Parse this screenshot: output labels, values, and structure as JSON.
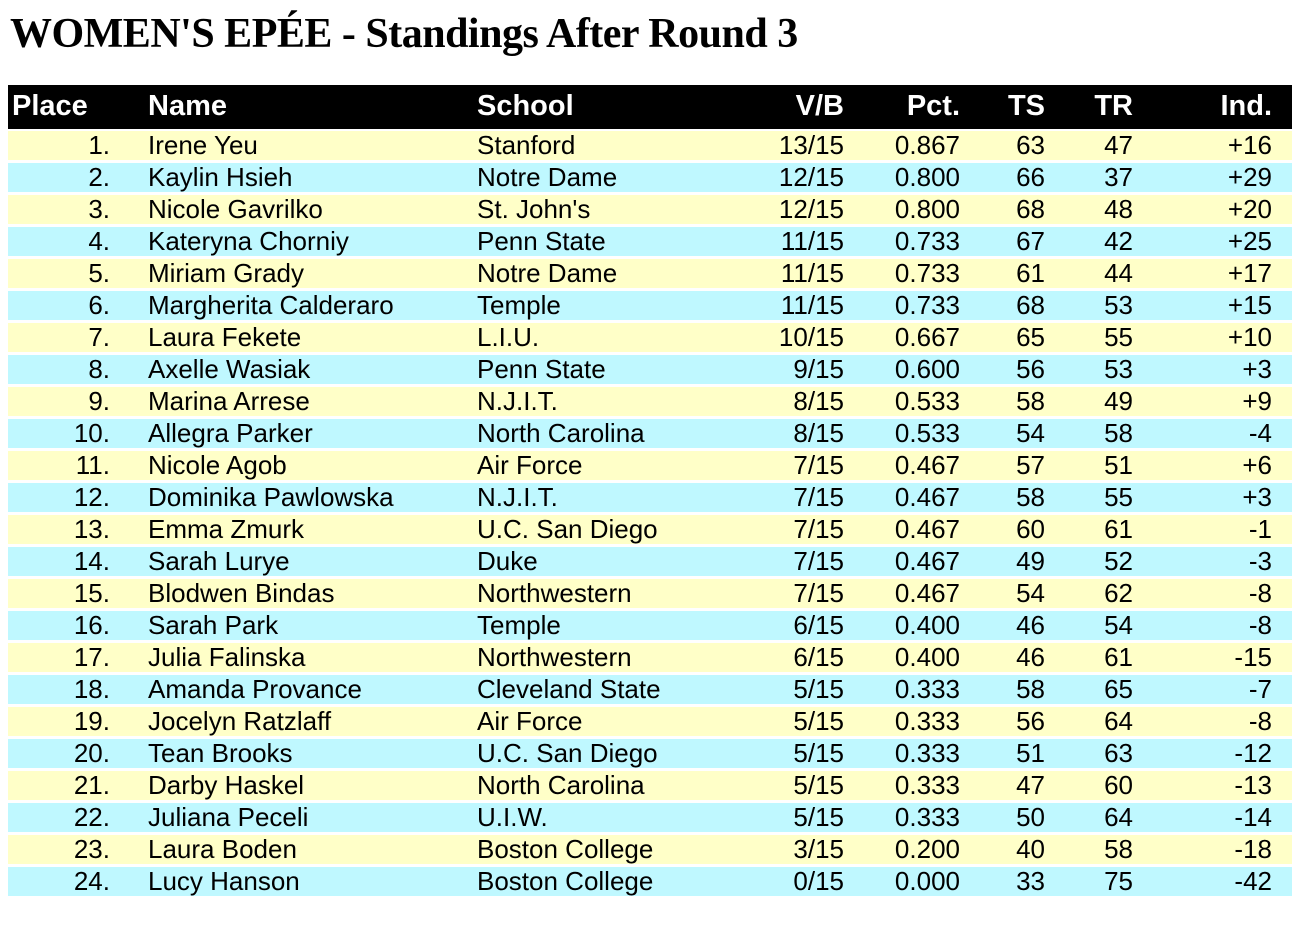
{
  "title": "WOMEN'S EPÉE - Standings After Round 3",
  "colors": {
    "header_bg": "#000000",
    "header_text": "#FFFFFF",
    "row_yellow": "#FFFFC8",
    "row_cyan": "#BFF8FF"
  },
  "table": {
    "columns": [
      {
        "key": "place",
        "label": "Place"
      },
      {
        "key": "name",
        "label": "Name"
      },
      {
        "key": "school",
        "label": "School"
      },
      {
        "key": "vb",
        "label": "V/B"
      },
      {
        "key": "pct",
        "label": "Pct."
      },
      {
        "key": "ts",
        "label": "TS"
      },
      {
        "key": "tr",
        "label": "TR"
      },
      {
        "key": "ind",
        "label": "Ind."
      }
    ],
    "rows": [
      {
        "place": "1.",
        "name": "Irene Yeu",
        "school": "Stanford",
        "vb": "13/15",
        "pct": "0.867",
        "ts": "63",
        "tr": "47",
        "ind": "+16"
      },
      {
        "place": "2.",
        "name": "Kaylin Hsieh",
        "school": "Notre Dame",
        "vb": "12/15",
        "pct": "0.800",
        "ts": "66",
        "tr": "37",
        "ind": "+29"
      },
      {
        "place": "3.",
        "name": "Nicole Gavrilko",
        "school": "St. John's",
        "vb": "12/15",
        "pct": "0.800",
        "ts": "68",
        "tr": "48",
        "ind": "+20"
      },
      {
        "place": "4.",
        "name": "Kateryna Chorniy",
        "school": "Penn State",
        "vb": "11/15",
        "pct": "0.733",
        "ts": "67",
        "tr": "42",
        "ind": "+25"
      },
      {
        "place": "5.",
        "name": "Miriam Grady",
        "school": "Notre Dame",
        "vb": "11/15",
        "pct": "0.733",
        "ts": "61",
        "tr": "44",
        "ind": "+17"
      },
      {
        "place": "6.",
        "name": "Margherita Calderaro",
        "school": "Temple",
        "vb": "11/15",
        "pct": "0.733",
        "ts": "68",
        "tr": "53",
        "ind": "+15"
      },
      {
        "place": "7.",
        "name": "Laura Fekete",
        "school": "L.I.U.",
        "vb": "10/15",
        "pct": "0.667",
        "ts": "65",
        "tr": "55",
        "ind": "+10"
      },
      {
        "place": "8.",
        "name": "Axelle Wasiak",
        "school": "Penn State",
        "vb": "9/15",
        "pct": "0.600",
        "ts": "56",
        "tr": "53",
        "ind": "+3"
      },
      {
        "place": "9.",
        "name": "Marina Arrese",
        "school": "N.J.I.T.",
        "vb": "8/15",
        "pct": "0.533",
        "ts": "58",
        "tr": "49",
        "ind": "+9"
      },
      {
        "place": "10.",
        "name": "Allegra Parker",
        "school": "North Carolina",
        "vb": "8/15",
        "pct": "0.533",
        "ts": "54",
        "tr": "58",
        "ind": "-4"
      },
      {
        "place": "11.",
        "name": "Nicole Agob",
        "school": "Air Force",
        "vb": "7/15",
        "pct": "0.467",
        "ts": "57",
        "tr": "51",
        "ind": "+6"
      },
      {
        "place": "12.",
        "name": "Dominika Pawlowska",
        "school": "N.J.I.T.",
        "vb": "7/15",
        "pct": "0.467",
        "ts": "58",
        "tr": "55",
        "ind": "+3"
      },
      {
        "place": "13.",
        "name": "Emma Zmurk",
        "school": "U.C. San Diego",
        "vb": "7/15",
        "pct": "0.467",
        "ts": "60",
        "tr": "61",
        "ind": "-1"
      },
      {
        "place": "14.",
        "name": "Sarah Lurye",
        "school": "Duke",
        "vb": "7/15",
        "pct": "0.467",
        "ts": "49",
        "tr": "52",
        "ind": "-3"
      },
      {
        "place": "15.",
        "name": "Blodwen Bindas",
        "school": "Northwestern",
        "vb": "7/15",
        "pct": "0.467",
        "ts": "54",
        "tr": "62",
        "ind": "-8"
      },
      {
        "place": "16.",
        "name": "Sarah Park",
        "school": "Temple",
        "vb": "6/15",
        "pct": "0.400",
        "ts": "46",
        "tr": "54",
        "ind": "-8"
      },
      {
        "place": "17.",
        "name": "Julia Falinska",
        "school": "Northwestern",
        "vb": "6/15",
        "pct": "0.400",
        "ts": "46",
        "tr": "61",
        "ind": "-15"
      },
      {
        "place": "18.",
        "name": "Amanda Provance",
        "school": "Cleveland State",
        "vb": "5/15",
        "pct": "0.333",
        "ts": "58",
        "tr": "65",
        "ind": "-7"
      },
      {
        "place": "19.",
        "name": "Jocelyn Ratzlaff",
        "school": "Air Force",
        "vb": "5/15",
        "pct": "0.333",
        "ts": "56",
        "tr": "64",
        "ind": "-8"
      },
      {
        "place": "20.",
        "name": "Tean Brooks",
        "school": "U.C. San Diego",
        "vb": "5/15",
        "pct": "0.333",
        "ts": "51",
        "tr": "63",
        "ind": "-12"
      },
      {
        "place": "21.",
        "name": "Darby Haskel",
        "school": "North Carolina",
        "vb": "5/15",
        "pct": "0.333",
        "ts": "47",
        "tr": "60",
        "ind": "-13"
      },
      {
        "place": "22.",
        "name": "Juliana Peceli",
        "school": "U.I.W.",
        "vb": "5/15",
        "pct": "0.333",
        "ts": "50",
        "tr": "64",
        "ind": "-14"
      },
      {
        "place": "23.",
        "name": "Laura Boden",
        "school": "Boston College",
        "vb": "3/15",
        "pct": "0.200",
        "ts": "40",
        "tr": "58",
        "ind": "-18"
      },
      {
        "place": "24.",
        "name": "Lucy Hanson",
        "school": "Boston College",
        "vb": "0/15",
        "pct": "0.000",
        "ts": "33",
        "tr": "75",
        "ind": "-42"
      }
    ]
  }
}
